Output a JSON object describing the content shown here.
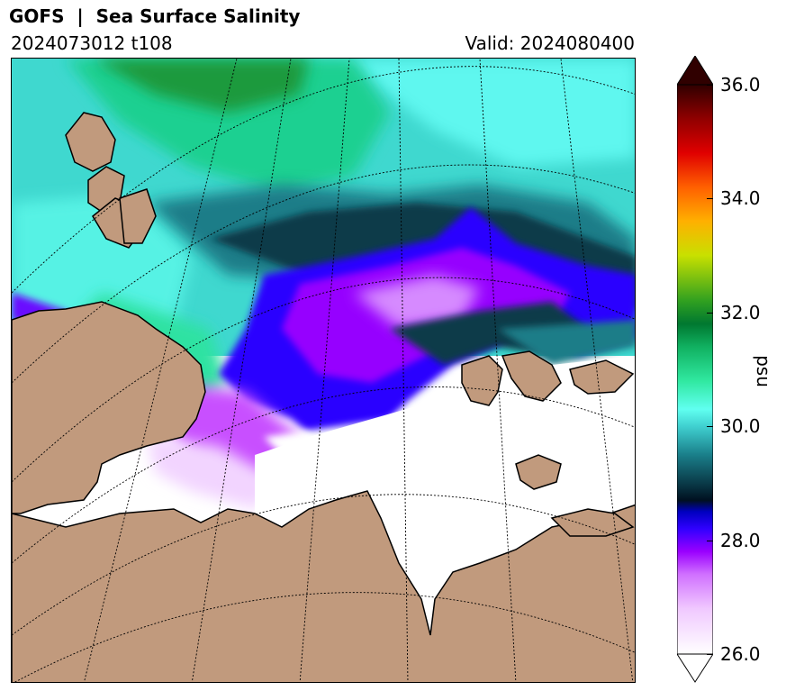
{
  "header": {
    "title": "GOFS  |  Sea Surface Salinity",
    "run": "2024073012 t108",
    "valid": "Valid: 2024080400"
  },
  "colorbar": {
    "unit": "psu",
    "min": 26.0,
    "max": 36.0,
    "ticks": [
      "26.0",
      "28.0",
      "30.0",
      "32.0",
      "34.0",
      "36.0"
    ],
    "extend": "both",
    "stops": [
      {
        "v": 26.0,
        "c": "#ffffff"
      },
      {
        "v": 26.8,
        "c": "#f0c8ff"
      },
      {
        "v": 27.4,
        "c": "#d070ff"
      },
      {
        "v": 27.8,
        "c": "#9a00ff"
      },
      {
        "v": 28.2,
        "c": "#3000ff"
      },
      {
        "v": 28.5,
        "c": "#0000c0"
      },
      {
        "v": 28.7,
        "c": "#001020"
      },
      {
        "v": 29.0,
        "c": "#0a3a48"
      },
      {
        "v": 29.5,
        "c": "#1a7f8a"
      },
      {
        "v": 30.0,
        "c": "#40d0d0"
      },
      {
        "v": 30.3,
        "c": "#60fff0"
      },
      {
        "v": 30.8,
        "c": "#30e8a0"
      },
      {
        "v": 31.4,
        "c": "#10b060"
      },
      {
        "v": 31.8,
        "c": "#007830"
      },
      {
        "v": 32.2,
        "c": "#30a020"
      },
      {
        "v": 33.0,
        "c": "#c8e000"
      },
      {
        "v": 33.6,
        "c": "#ffb000"
      },
      {
        "v": 34.2,
        "c": "#ff6000"
      },
      {
        "v": 34.8,
        "c": "#e00000"
      },
      {
        "v": 35.4,
        "c": "#900000"
      },
      {
        "v": 36.0,
        "c": "#300000"
      }
    ]
  },
  "map": {
    "land_color": "#c19a7d",
    "ice_color": "#ffffff"
  }
}
